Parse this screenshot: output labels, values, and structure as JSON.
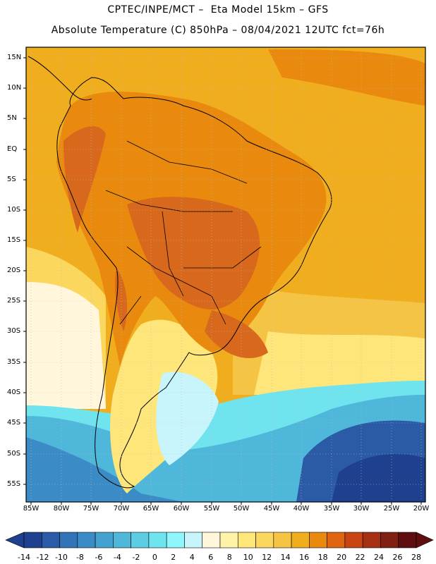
{
  "header": {
    "line1": "CPTEC/INPE/MCT –  Eta Model 15km – GFS",
    "line2": "Absolute Temperature (C) 850hPa – 08/04/2021 12UTC fct=76h"
  },
  "axes": {
    "lat_labels": [
      "15N",
      "10N",
      "5N",
      "EQ",
      "5S",
      "10S",
      "15S",
      "20S",
      "25S",
      "30S",
      "35S",
      "40S",
      "45S",
      "50S",
      "55S"
    ],
    "lon_labels": [
      "85W",
      "80W",
      "75W",
      "70W",
      "65W",
      "60W",
      "55W",
      "50W",
      "45W",
      "40W",
      "35W",
      "30W",
      "25W",
      "20W"
    ]
  },
  "colorbar": {
    "labels": [
      "-14",
      "-12",
      "-10",
      "-8",
      "-6",
      "-4",
      "-2",
      "0",
      "2",
      "4",
      "6",
      "8",
      "10",
      "12",
      "14",
      "16",
      "18",
      "20",
      "22",
      "24",
      "26",
      "28"
    ],
    "colors": [
      "#1f3f8f",
      "#2b5aa6",
      "#3374b8",
      "#3b8cc6",
      "#45a2d0",
      "#4fb7da",
      "#5ccde3",
      "#6fe3ee",
      "#8ff6fb",
      "#c8f4fb",
      "#fff6dc",
      "#fff3a8",
      "#ffe67a",
      "#fcd75e",
      "#f5c445",
      "#f0ae1f",
      "#e98a0e",
      "#e06512",
      "#c94614",
      "#a53012",
      "#7f2012",
      "#5e0e0e"
    ]
  },
  "map_colors": {
    "ocean_hot": "#f0ae1f",
    "land_hot": "#e98a0e",
    "land_hotter": "#d8691c",
    "cold_deep": "#2b5aa6",
    "cold_mid": "#45a2d0",
    "cold_light": "#6fe3ee",
    "pale": "#fff6dc",
    "pale_yellow": "#ffe67a",
    "gold": "#f5c445"
  }
}
